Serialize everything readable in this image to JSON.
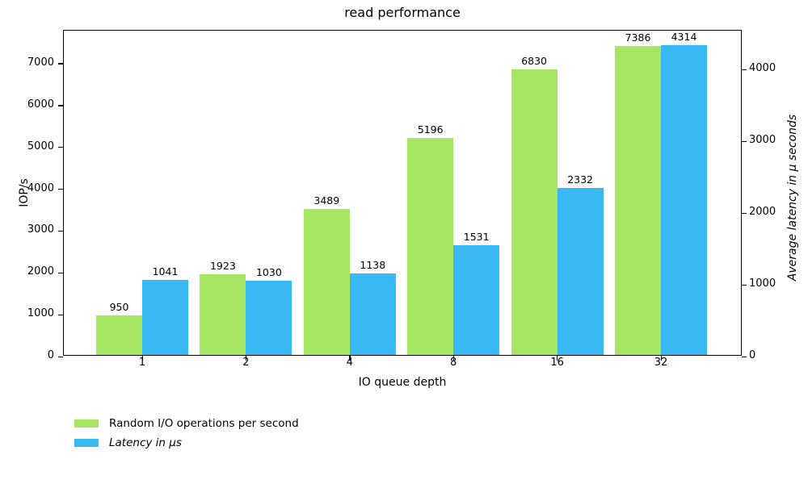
{
  "chart_data": {
    "type": "bar",
    "title": "read performance",
    "xlabel": "IO queue depth",
    "ylabel_left": "IOP/s",
    "ylabel_right": "Average latency in µ seconds",
    "categories": [
      "1",
      "2",
      "4",
      "8",
      "16",
      "32"
    ],
    "series": [
      {
        "name": "Random I/O operations per second",
        "axis": "left",
        "color": "#a7e662",
        "italic": false,
        "values": [
          950,
          1923,
          3489,
          5196,
          6830,
          7386
        ]
      },
      {
        "name": "Latency in µs",
        "axis": "right",
        "color": "#39b9f4",
        "italic": true,
        "values": [
          1041,
          1030,
          1138,
          1531,
          2332,
          4314
        ]
      }
    ],
    "left_axis": {
      "ticks": [
        0,
        1000,
        2000,
        3000,
        4000,
        5000,
        6000,
        7000
      ],
      "max": 7790
    },
    "right_axis": {
      "ticks": [
        0,
        1000,
        2000,
        3000,
        4000
      ],
      "max": 4541
    },
    "grid": false,
    "legend_position": "lower-left"
  }
}
